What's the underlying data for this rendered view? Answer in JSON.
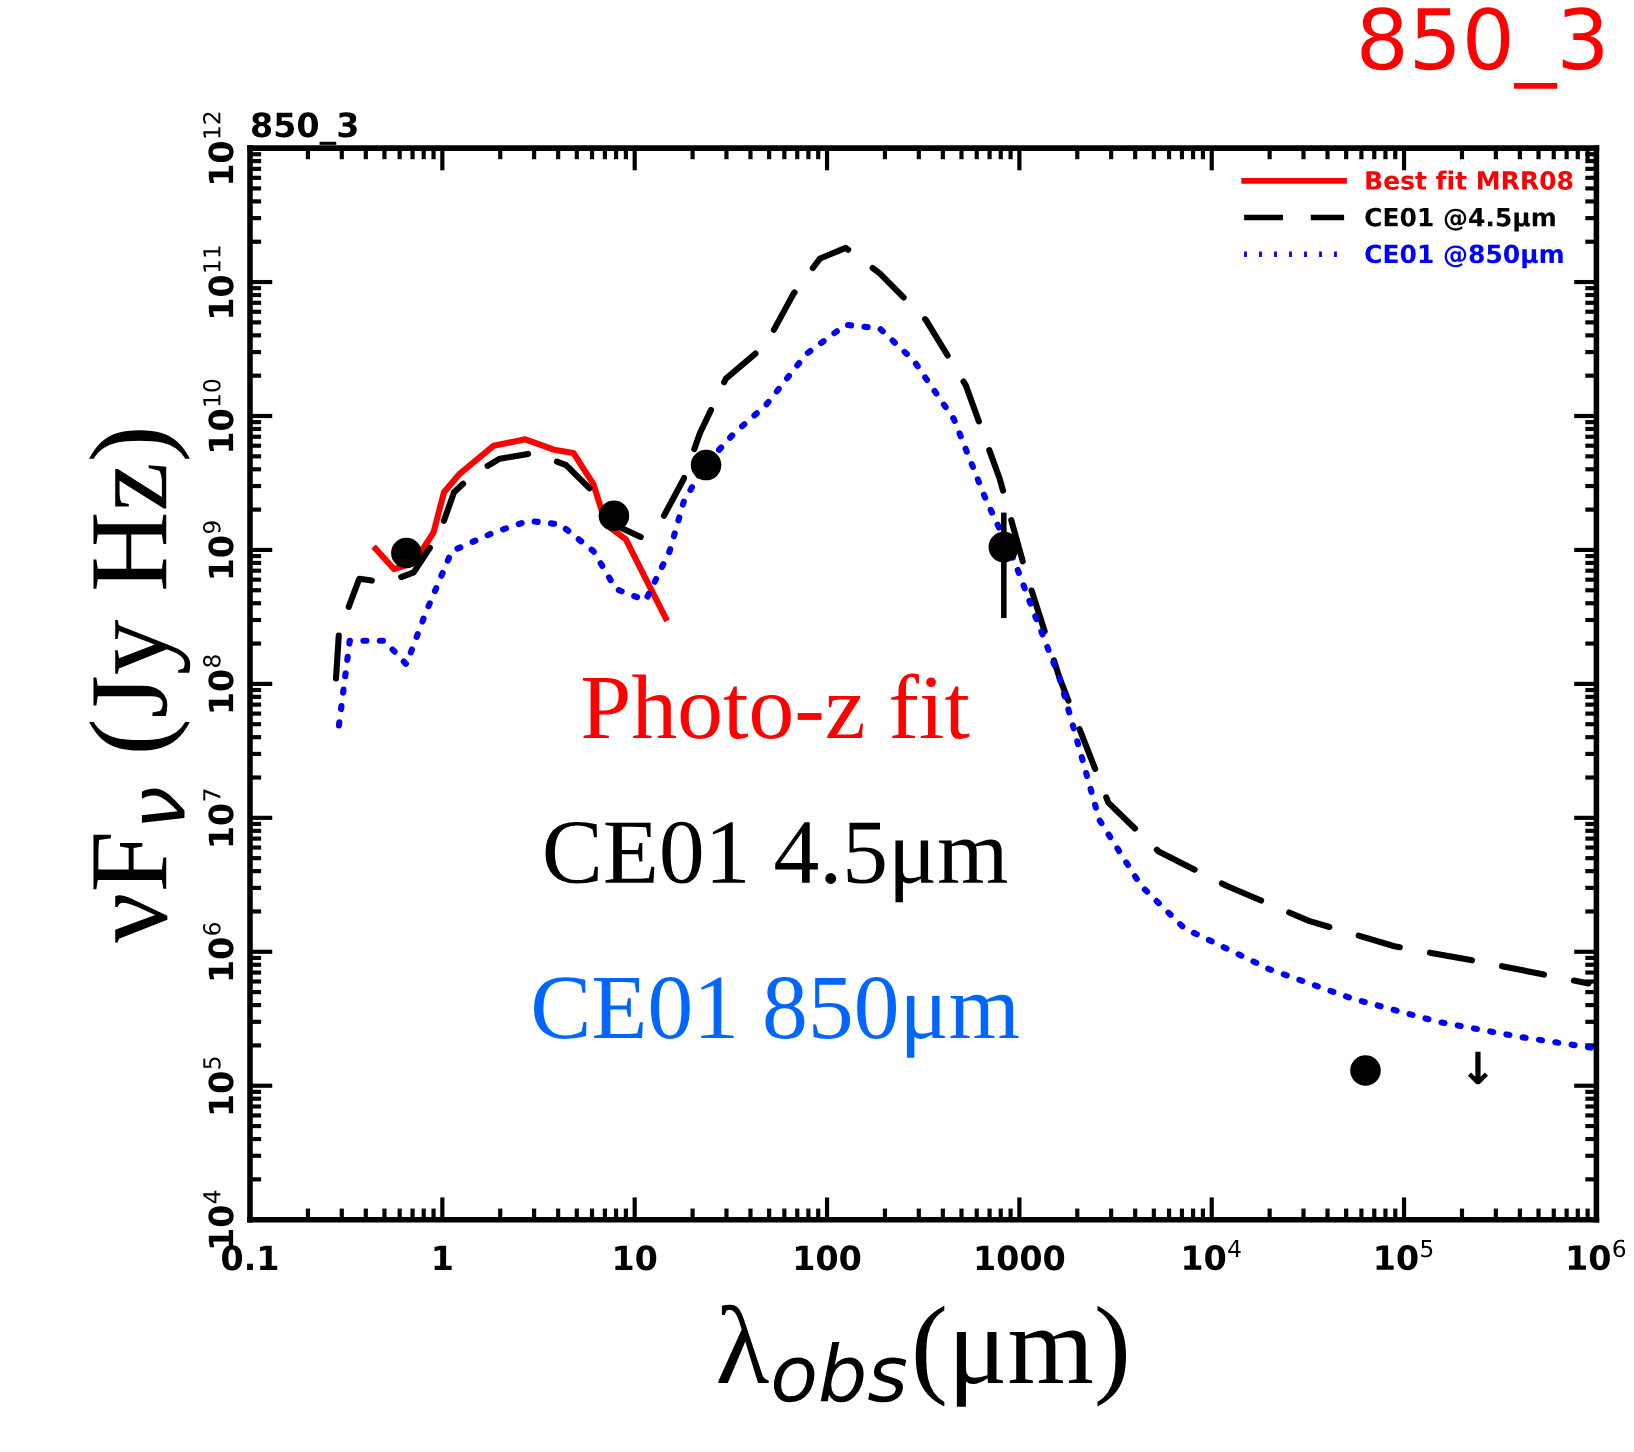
{
  "chart_data": {
    "type": "line",
    "title": "850_3",
    "xlabel": "λ$_{obs}$(μm)",
    "ylabel": "νF$_{ν}$ (Jy Hz)",
    "log": "xy",
    "legend": "top right",
    "grid": false,
    "xlim": [
      0.1,
      1000000
    ],
    "ylim": [
      10000,
      1000000000000
    ],
    "xticks": [
      0.1,
      1,
      10,
      100,
      1000,
      {
        "value": 10000,
        "label": "10$^{4}$"
      },
      {
        "value": 100000,
        "label": "10$^{5}$"
      },
      {
        "value": 1000000,
        "label": "10$^{6}$"
      }
    ],
    "yticks": [
      {
        "value": 10000,
        "label": "10$^{4}$"
      },
      {
        "value": 100000,
        "label": "10$^{5}$"
      },
      {
        "value": 1000000,
        "label": "10$^{6}$"
      },
      {
        "value": 10000000,
        "label": "10$^{7}$"
      },
      {
        "value": 100000000,
        "label": "10$^{8}$"
      },
      {
        "value": 1000000000,
        "label": "10$^{9}$"
      },
      {
        "value": 10000000000,
        "label": "10$^{10}$"
      },
      {
        "value": 100000000000,
        "label": "10$^{11}$"
      },
      {
        "value": 1000000000000,
        "label": "10$^{12}$"
      }
    ],
    "series": [
      {
        "name": "Best fit MRR08",
        "color": "#ff0000",
        "line_style": "solid",
        "x": [
          0.45,
          0.56,
          0.71,
          0.9,
          1.02,
          1.23,
          1.85,
          2.7,
          3.8,
          4.8,
          6.1,
          7.1,
          9.0,
          11.4,
          14.5
        ],
        "values": [
          1020000000.0,
          720000000.0,
          800000000.0,
          1350000000.0,
          2700000000.0,
          3700000000.0,
          6000000000.0,
          6700000000.0,
          5600000000.0,
          5300000000.0,
          3100000000.0,
          1550000000.0,
          1200000000.0,
          610000000.0,
          310000000.0
        ]
      },
      {
        "name": "CE01 @4.5μm",
        "color": "#000000",
        "line_style": "dashed",
        "x": [
          0.28,
          0.29,
          0.37,
          0.51,
          0.71,
          0.97,
          1.15,
          1.46,
          1.99,
          3.0,
          4.4,
          6.1,
          7.8,
          11.4,
          12.8,
          14.2,
          18.0,
          21.8,
          29.8,
          48,
          67,
          92,
          125,
          188,
          327,
          526,
          790,
          1080,
          1620,
          2900,
          5300,
          12000,
          32000,
          89000,
          240000,
          910000
        ],
        "values": [
          110000000.0,
          240000000.0,
          610000000.0,
          570000000.0,
          680000000.0,
          1350000000.0,
          2700000000.0,
          3700000000.0,
          4800000000.0,
          5300000000.0,
          4300000000.0,
          2700000000.0,
          1550000000.0,
          1200000000.0,
          null,
          1800000000.0,
          3400000000.0,
          7400000000.0,
          19000000000.0,
          34000000000.0,
          82000000000.0,
          150000000000.0,
          180000000000.0,
          116000000000.0,
          52000000000.0,
          17000000000.0,
          3400000000.0,
          680000000.0,
          110000000.0,
          13000000.0,
          5600000.0,
          3100000.0,
          1700000.0,
          1100000.0,
          850000.0,
          580000.0
        ]
      },
      {
        "name": "CE01 @850μm",
        "color": "#0000ff",
        "line_style": "dotted",
        "x": [
          0.29,
          0.33,
          0.5,
          0.65,
          0.82,
          1.12,
          1.85,
          2.8,
          4.1,
          6.1,
          8.0,
          11.4,
          15.2,
          18,
          22.9,
          32.8,
          48,
          78,
          125,
          188,
          282,
          456,
          668,
          935,
          1190,
          1620,
          2600,
          4300,
          7200,
          20000,
          53000,
          150000,
          410000,
          1000000
        ],
        "values": [
          49000000.0,
          210000000.0,
          210000000.0,
          140000000.0,
          340000000.0,
          980000000.0,
          1350000000.0,
          1650000000.0,
          1550000000.0,
          980000000.0,
          510000000.0,
          420000000.0,
          980000000.0,
          2300000000.0,
          4200000000.0,
          7400000000.0,
          12000000000.0,
          29000000000.0,
          48000000000.0,
          45000000000.0,
          26000000000.0,
          9500000000.0,
          2400000000.0,
          850000000.0,
          340000000.0,
          110000000.0,
          9700000.0,
          3100000.0,
          1500000.0,
          740000.0,
          450000.0,
          300000.0,
          230000.0,
          190000.0
        ]
      },
      {
        "type": "scatter",
        "color": "#000000",
        "marker": "circle",
        "x": [
          0.65,
          7.8,
          23.5,
          830,
          63000
        ],
        "values": [
          950000000.0,
          1800000000.0,
          4300000000.0,
          1050000000.0,
          130000.0
        ],
        "errors": [
          null,
          null,
          null,
          [
            310000000.0,
            1900000000.0
          ],
          null
        ]
      }
    ],
    "annotations": [
      "Photo-z fit",
      "CE01 4.5μm",
      "CE01 850μm",
      "850_3",
      "↓"
    ]
  }
}
